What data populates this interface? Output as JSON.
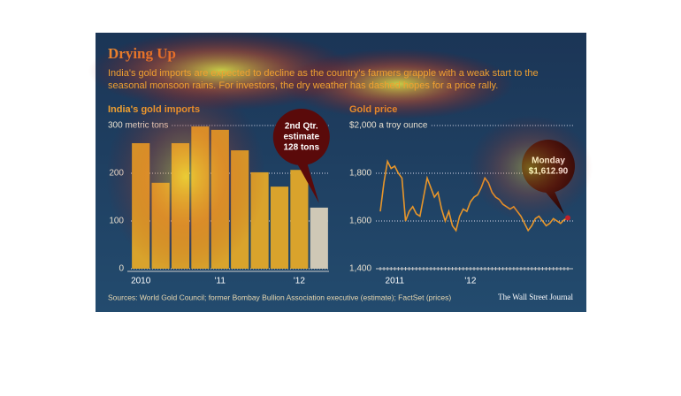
{
  "title": "Drying Up",
  "subtitle": "India's gold imports are expected to decline as the country's farmers grapple with a weak start to the seasonal monsoon rains. For investors, the dry weather has dashed hopes for a price rally.",
  "sources": "Sources: World Gold Council; former Bombay Bullion Association executive (estimate); FactSet (prices)",
  "credit": "The Wall Street Journal",
  "chart_data": [
    {
      "type": "bar",
      "title": "India's gold imports",
      "categories": [
        "2010",
        null,
        null,
        null,
        "'11",
        null,
        null,
        null,
        "'12",
        null
      ],
      "values": [
        263,
        180,
        263,
        298,
        291,
        248,
        202,
        172,
        207,
        128
      ],
      "colors": [
        "#d9a32c",
        "#d9a32c",
        "#d9a32c",
        "#d9a32c",
        "#d9a32c",
        "#d9a32c",
        "#d9a32c",
        "#d9a32c",
        "#d9a32c",
        "#cfc8b6"
      ],
      "ylim": [
        0,
        300
      ],
      "yticks": [
        0,
        100,
        200,
        {
          "value": 300,
          "label": "300 metric tons"
        }
      ],
      "grid": true,
      "annotation": {
        "lines": [
          "2nd Qtr.",
          "estimate",
          "128 tons"
        ],
        "index": 9
      }
    },
    {
      "type": "line",
      "title": "Gold price",
      "categories": [
        null,
        null,
        null,
        null,
        "2011",
        null,
        null,
        null,
        null,
        null,
        null,
        null,
        null,
        null,
        null,
        null,
        null,
        null,
        null,
        null,
        null,
        null,
        null,
        null,
        null,
        "'12",
        null,
        null,
        null,
        null,
        null,
        null,
        null,
        null,
        null,
        null,
        null,
        null,
        null,
        null,
        null,
        null,
        null,
        null,
        null,
        null,
        null,
        null,
        null,
        null,
        null,
        null,
        null
      ],
      "series": [
        {
          "name": "Gold price",
          "color": "#e8962a",
          "values": [
            1640,
            1760,
            1850,
            1820,
            1830,
            1800,
            1780,
            1600,
            1640,
            1660,
            1630,
            1620,
            1700,
            1780,
            1740,
            1700,
            1720,
            1650,
            1600,
            1640,
            1580,
            1560,
            1620,
            1650,
            1640,
            1680,
            1700,
            1710,
            1740,
            1780,
            1760,
            1720,
            1700,
            1690,
            1670,
            1660,
            1650,
            1660,
            1640,
            1620,
            1590,
            1560,
            1580,
            1610,
            1620,
            1600,
            1580,
            1590,
            1610,
            1600,
            1590,
            1605,
            1612.9
          ]
        }
      ],
      "ylim": [
        1400,
        2000
      ],
      "yticks": [
        {
          "value": 1400,
          "label": "1,400"
        },
        {
          "value": 1600,
          "label": "1,600"
        },
        {
          "value": 1800,
          "label": "1,800"
        },
        {
          "value": 2000,
          "label": "$2,000 a troy ounce"
        }
      ],
      "grid": true,
      "annotation": {
        "lines": [
          "Monday",
          "$1,612.90"
        ],
        "index": 52
      }
    }
  ]
}
